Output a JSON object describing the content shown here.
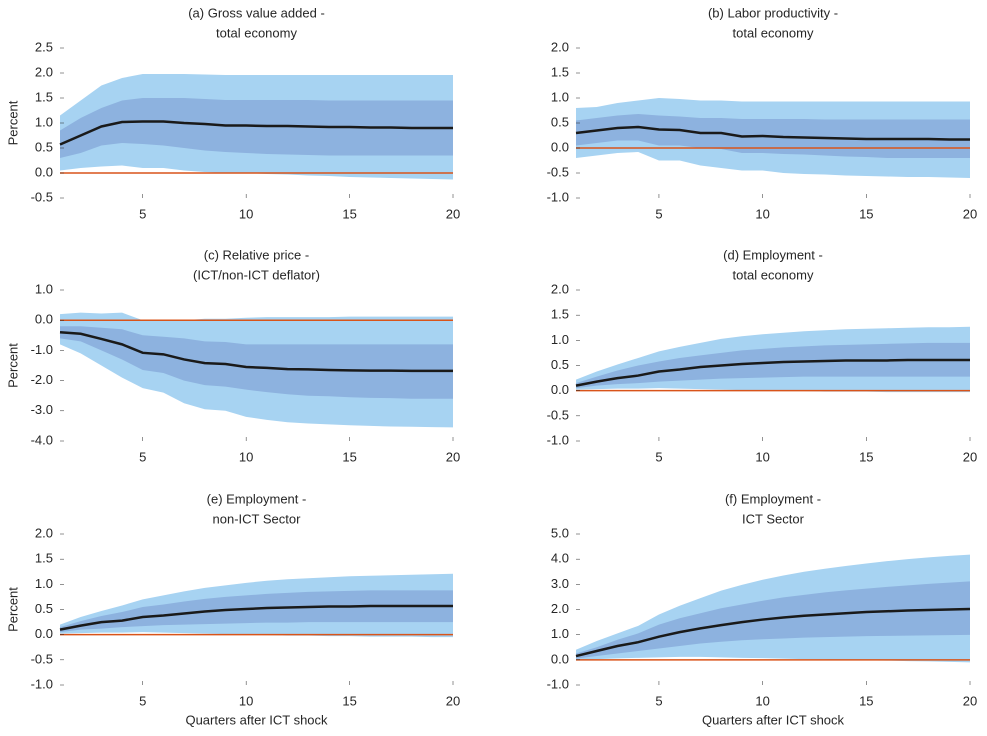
{
  "chart_data": [
    {
      "type": "line",
      "title": [
        "(a) Gross value added -",
        "total economy"
      ],
      "ylabel": "Percent",
      "x": [
        1,
        2,
        3,
        4,
        5,
        6,
        7,
        8,
        9,
        10,
        11,
        12,
        13,
        14,
        15,
        16,
        17,
        18,
        19,
        20
      ],
      "xlim": [
        1,
        20
      ],
      "xticks": [
        5,
        10,
        15,
        20
      ],
      "ylim": [
        -0.5,
        2.5
      ],
      "yticks": [
        -0.5,
        {
          "value": 0,
          "label": "0.0"
        },
        0.5,
        {
          "value": 1,
          "label": "1.0"
        },
        1.5,
        {
          "value": 2,
          "label": "2.0"
        },
        2.5
      ],
      "bands": [
        {
          "color": "#a7d3f2",
          "lower": [
            0.05,
            0.1,
            0.13,
            0.15,
            0.1,
            0.1,
            0.05,
            0.02,
            0,
            0,
            -0.02,
            -0.03,
            -0.05,
            -0.06,
            -0.08,
            -0.09,
            -0.1,
            -0.11,
            -0.12,
            -0.13
          ],
          "upper": [
            1.15,
            1.45,
            1.75,
            1.9,
            1.98,
            1.98,
            1.98,
            1.97,
            1.96,
            1.96,
            1.96,
            1.96,
            1.96,
            1.96,
            1.96,
            1.96,
            1.96,
            1.96,
            1.96,
            1.96
          ]
        },
        {
          "color": "#8db2df",
          "lower": [
            0.3,
            0.4,
            0.55,
            0.6,
            0.58,
            0.55,
            0.5,
            0.45,
            0.42,
            0.4,
            0.38,
            0.37,
            0.36,
            0.35,
            0.35,
            0.35,
            0.35,
            0.35,
            0.35,
            0.35
          ],
          "upper": [
            0.85,
            1.1,
            1.3,
            1.45,
            1.5,
            1.5,
            1.5,
            1.48,
            1.46,
            1.46,
            1.46,
            1.46,
            1.46,
            1.45,
            1.45,
            1.45,
            1.45,
            1.45,
            1.45,
            1.45
          ]
        }
      ],
      "series": [
        {
          "color": "#1a1a1a",
          "values": [
            0.57,
            0.75,
            0.93,
            1.02,
            1.03,
            1.03,
            1.0,
            0.98,
            0.95,
            0.95,
            0.94,
            0.94,
            0.93,
            0.92,
            0.92,
            0.91,
            0.91,
            0.9,
            0.9,
            0.9
          ]
        }
      ],
      "hline": {
        "value": 0,
        "color": "#d9541a"
      }
    },
    {
      "type": "line",
      "title": [
        "(b) Labor productivity -",
        "total economy"
      ],
      "x": [
        1,
        2,
        3,
        4,
        5,
        6,
        7,
        8,
        9,
        10,
        11,
        12,
        13,
        14,
        15,
        16,
        17,
        18,
        19,
        20
      ],
      "xlim": [
        1,
        20
      ],
      "xticks": [
        5,
        10,
        15,
        20
      ],
      "ylim": [
        -1,
        2
      ],
      "yticks": [
        {
          "value": -1,
          "label": "-1.0"
        },
        -0.5,
        {
          "value": 0,
          "label": "0.0"
        },
        0.5,
        {
          "value": 1,
          "label": "1.0"
        },
        1.5,
        {
          "value": 2,
          "label": "2.0"
        }
      ],
      "bands": [
        {
          "color": "#a7d3f2",
          "lower": [
            -0.2,
            -0.15,
            -0.1,
            -0.08,
            -0.25,
            -0.25,
            -0.35,
            -0.4,
            -0.45,
            -0.45,
            -0.5,
            -0.52,
            -0.53,
            -0.55,
            -0.56,
            -0.57,
            -0.58,
            -0.58,
            -0.59,
            -0.6
          ],
          "upper": [
            0.8,
            0.82,
            0.9,
            0.95,
            1.0,
            0.98,
            0.95,
            0.95,
            0.93,
            0.93,
            0.93,
            0.93,
            0.93,
            0.93,
            0.93,
            0.93,
            0.93,
            0.93,
            0.93,
            0.93
          ]
        },
        {
          "color": "#8db2df",
          "lower": [
            0.05,
            0.1,
            0.15,
            0.15,
            0.05,
            0.05,
            0,
            -0.02,
            -0.1,
            -0.1,
            -0.12,
            -0.13,
            -0.15,
            -0.17,
            -0.18,
            -0.2,
            -0.2,
            -0.2,
            -0.2,
            -0.2
          ],
          "upper": [
            0.55,
            0.6,
            0.65,
            0.68,
            0.65,
            0.63,
            0.6,
            0.6,
            0.58,
            0.58,
            0.58,
            0.58,
            0.57,
            0.57,
            0.57,
            0.57,
            0.57,
            0.57,
            0.57,
            0.57
          ]
        }
      ],
      "series": [
        {
          "color": "#1a1a1a",
          "values": [
            0.3,
            0.35,
            0.4,
            0.42,
            0.37,
            0.36,
            0.3,
            0.3,
            0.23,
            0.24,
            0.22,
            0.21,
            0.2,
            0.19,
            0.18,
            0.18,
            0.18,
            0.18,
            0.17,
            0.17
          ]
        }
      ],
      "hline": {
        "value": 0,
        "color": "#d9541a"
      }
    },
    {
      "type": "line",
      "title": [
        "(c) Relative price -",
        "(ICT/non-ICT deflator)"
      ],
      "ylabel": "Percent",
      "x": [
        1,
        2,
        3,
        4,
        5,
        6,
        7,
        8,
        9,
        10,
        11,
        12,
        13,
        14,
        15,
        16,
        17,
        18,
        19,
        20
      ],
      "xlim": [
        1,
        20
      ],
      "xticks": [
        5,
        10,
        15,
        20
      ],
      "ylim": [
        -4,
        1
      ],
      "yticks": [
        {
          "value": -4,
          "label": "-4.0"
        },
        {
          "value": -3,
          "label": "-3.0"
        },
        {
          "value": -2,
          "label": "-2.0"
        },
        {
          "value": -1,
          "label": "-1.0"
        },
        {
          "value": 0,
          "label": "0.0"
        },
        {
          "value": 1,
          "label": "1.0"
        }
      ],
      "bands": [
        {
          "color": "#a7d3f2",
          "lower": [
            -0.8,
            -1.1,
            -1.5,
            -1.9,
            -2.25,
            -2.4,
            -2.75,
            -2.95,
            -3.0,
            -3.2,
            -3.3,
            -3.38,
            -3.42,
            -3.45,
            -3.48,
            -3.5,
            -3.52,
            -3.53,
            -3.54,
            -3.55
          ],
          "upper": [
            0.2,
            0.25,
            0.22,
            0.25,
            0,
            0,
            0,
            0.05,
            0.05,
            0.08,
            0.1,
            0.1,
            0.1,
            0.1,
            0.12,
            0.12,
            0.12,
            0.12,
            0.12,
            0.12
          ]
        },
        {
          "color": "#8db2df",
          "lower": [
            -0.6,
            -0.7,
            -1.0,
            -1.3,
            -1.65,
            -1.75,
            -2.0,
            -2.15,
            -2.2,
            -2.3,
            -2.38,
            -2.45,
            -2.5,
            -2.52,
            -2.55,
            -2.57,
            -2.58,
            -2.6,
            -2.6,
            -2.6
          ],
          "upper": [
            -0.2,
            -0.2,
            -0.25,
            -0.3,
            -0.5,
            -0.55,
            -0.6,
            -0.7,
            -0.72,
            -0.8,
            -0.8,
            -0.8,
            -0.8,
            -0.8,
            -0.8,
            -0.8,
            -0.8,
            -0.8,
            -0.8,
            -0.8
          ]
        }
      ],
      "series": [
        {
          "color": "#1a1a1a",
          "values": [
            -0.4,
            -0.45,
            -0.62,
            -0.8,
            -1.08,
            -1.13,
            -1.3,
            -1.42,
            -1.45,
            -1.55,
            -1.58,
            -1.62,
            -1.63,
            -1.65,
            -1.66,
            -1.67,
            -1.67,
            -1.68,
            -1.68,
            -1.68
          ]
        }
      ],
      "hline": {
        "value": 0,
        "color": "#d9541a"
      }
    },
    {
      "type": "line",
      "title": [
        "(d) Employment -",
        "total economy"
      ],
      "x": [
        1,
        2,
        3,
        4,
        5,
        6,
        7,
        8,
        9,
        10,
        11,
        12,
        13,
        14,
        15,
        16,
        17,
        18,
        19,
        20
      ],
      "xlim": [
        1,
        20
      ],
      "xticks": [
        5,
        10,
        15,
        20
      ],
      "ylim": [
        -1,
        2
      ],
      "yticks": [
        {
          "value": -1,
          "label": "-1.0"
        },
        -0.5,
        {
          "value": 0,
          "label": "0.0"
        },
        0.5,
        {
          "value": 1,
          "label": "1.0"
        },
        1.5,
        {
          "value": 2,
          "label": "2.0"
        }
      ],
      "bands": [
        {
          "color": "#a7d3f2",
          "lower": [
            0.02,
            0.03,
            0.04,
            0.04,
            0.05,
            0.04,
            0.03,
            0.02,
            0.01,
            0,
            -0.01,
            -0.01,
            -0.02,
            -0.02,
            -0.02,
            -0.03,
            -0.03,
            -0.03,
            -0.03,
            -0.03
          ],
          "upper": [
            0.22,
            0.38,
            0.52,
            0.65,
            0.78,
            0.87,
            0.95,
            1.03,
            1.08,
            1.12,
            1.15,
            1.18,
            1.2,
            1.22,
            1.23,
            1.24,
            1.25,
            1.26,
            1.26,
            1.27
          ]
        },
        {
          "color": "#8db2df",
          "lower": [
            0.05,
            0.1,
            0.13,
            0.15,
            0.18,
            0.2,
            0.22,
            0.24,
            0.25,
            0.26,
            0.27,
            0.28,
            0.28,
            0.28,
            0.28,
            0.28,
            0.28,
            0.28,
            0.28,
            0.28
          ],
          "upper": [
            0.15,
            0.28,
            0.4,
            0.5,
            0.58,
            0.65,
            0.7,
            0.75,
            0.8,
            0.83,
            0.86,
            0.88,
            0.9,
            0.91,
            0.92,
            0.93,
            0.94,
            0.95,
            0.95,
            0.95
          ]
        }
      ],
      "series": [
        {
          "color": "#1a1a1a",
          "values": [
            0.1,
            0.18,
            0.25,
            0.3,
            0.38,
            0.42,
            0.47,
            0.5,
            0.53,
            0.55,
            0.57,
            0.58,
            0.59,
            0.6,
            0.6,
            0.6,
            0.61,
            0.61,
            0.61,
            0.61
          ]
        }
      ],
      "hline": {
        "value": 0,
        "color": "#d9541a"
      }
    },
    {
      "type": "line",
      "title": [
        "(e) Employment -",
        "non-ICT Sector"
      ],
      "ylabel": "Percent",
      "xlabel": "Quarters after ICT shock",
      "x": [
        1,
        2,
        3,
        4,
        5,
        6,
        7,
        8,
        9,
        10,
        11,
        12,
        13,
        14,
        15,
        16,
        17,
        18,
        19,
        20
      ],
      "xlim": [
        1,
        20
      ],
      "xticks": [
        5,
        10,
        15,
        20
      ],
      "ylim": [
        -1,
        2
      ],
      "yticks": [
        {
          "value": -1,
          "label": "-1.0"
        },
        -0.5,
        {
          "value": 0,
          "label": "0.0"
        },
        0.5,
        {
          "value": 1,
          "label": "1.0"
        },
        1.5,
        {
          "value": 2,
          "label": "2.0"
        }
      ],
      "bands": [
        {
          "color": "#a7d3f2",
          "lower": [
            0.02,
            0.03,
            0.04,
            0.04,
            0.05,
            0.04,
            0.03,
            0.02,
            0.01,
            0,
            -0.01,
            -0.02,
            -0.02,
            -0.03,
            -0.03,
            -0.04,
            -0.04,
            -0.04,
            -0.05,
            -0.05
          ],
          "upper": [
            0.2,
            0.35,
            0.47,
            0.58,
            0.7,
            0.78,
            0.86,
            0.93,
            0.98,
            1.03,
            1.07,
            1.1,
            1.12,
            1.14,
            1.16,
            1.17,
            1.18,
            1.19,
            1.2,
            1.21
          ]
        },
        {
          "color": "#8db2df",
          "lower": [
            0.05,
            0.1,
            0.12,
            0.15,
            0.17,
            0.19,
            0.2,
            0.21,
            0.22,
            0.23,
            0.24,
            0.24,
            0.25,
            0.25,
            0.25,
            0.25,
            0.25,
            0.25,
            0.25,
            0.25
          ],
          "upper": [
            0.15,
            0.27,
            0.37,
            0.45,
            0.55,
            0.6,
            0.66,
            0.71,
            0.75,
            0.78,
            0.81,
            0.83,
            0.85,
            0.86,
            0.87,
            0.88,
            0.88,
            0.88,
            0.88,
            0.88
          ]
        }
      ],
      "series": [
        {
          "color": "#1a1a1a",
          "values": [
            0.1,
            0.18,
            0.25,
            0.28,
            0.35,
            0.38,
            0.42,
            0.46,
            0.49,
            0.51,
            0.53,
            0.54,
            0.55,
            0.56,
            0.56,
            0.57,
            0.57,
            0.57,
            0.57,
            0.57
          ]
        }
      ],
      "hline": {
        "value": 0,
        "color": "#d9541a"
      }
    },
    {
      "type": "line",
      "title": [
        "(f) Employment -",
        "ICT Sector"
      ],
      "xlabel": "Quarters after ICT shock",
      "x": [
        1,
        2,
        3,
        4,
        5,
        6,
        7,
        8,
        9,
        10,
        11,
        12,
        13,
        14,
        15,
        16,
        17,
        18,
        19,
        20
      ],
      "xlim": [
        1,
        20
      ],
      "xticks": [
        5,
        10,
        15,
        20
      ],
      "ylim": [
        -1,
        5
      ],
      "yticks": [
        {
          "value": -1,
          "label": "-1.0"
        },
        {
          "value": 0,
          "label": "0.0"
        },
        {
          "value": 1,
          "label": "1.0"
        },
        {
          "value": 2,
          "label": "2.0"
        },
        {
          "value": 3,
          "label": "3.0"
        },
        {
          "value": 4,
          "label": "4.0"
        },
        {
          "value": 5,
          "label": "5.0"
        }
      ],
      "bands": [
        {
          "color": "#a7d3f2",
          "lower": [
            0,
            0.03,
            0.06,
            0.08,
            0.1,
            0.12,
            0.12,
            0.1,
            0.08,
            0.07,
            0.05,
            0.03,
            0.02,
            0,
            -0.02,
            -0.03,
            -0.05,
            -0.06,
            -0.08,
            -0.1
          ],
          "upper": [
            0.4,
            0.75,
            1.05,
            1.35,
            1.8,
            2.15,
            2.45,
            2.75,
            2.98,
            3.18,
            3.35,
            3.5,
            3.62,
            3.73,
            3.83,
            3.92,
            4.0,
            4.07,
            4.13,
            4.18
          ]
        },
        {
          "color": "#8db2df",
          "lower": [
            0.05,
            0.15,
            0.25,
            0.35,
            0.45,
            0.55,
            0.65,
            0.72,
            0.78,
            0.82,
            0.85,
            0.88,
            0.9,
            0.92,
            0.94,
            0.95,
            0.96,
            0.97,
            0.98,
            0.99
          ],
          "upper": [
            0.25,
            0.5,
            0.8,
            1.05,
            1.4,
            1.65,
            1.85,
            2.05,
            2.2,
            2.35,
            2.48,
            2.58,
            2.68,
            2.76,
            2.83,
            2.9,
            2.96,
            3.02,
            3.07,
            3.12
          ]
        }
      ],
      "series": [
        {
          "color": "#1a1a1a",
          "values": [
            0.15,
            0.35,
            0.55,
            0.7,
            0.92,
            1.1,
            1.25,
            1.38,
            1.5,
            1.6,
            1.68,
            1.75,
            1.8,
            1.85,
            1.9,
            1.93,
            1.96,
            1.98,
            2.0,
            2.02
          ]
        }
      ],
      "hline": {
        "value": 0,
        "color": "#d9541a"
      }
    }
  ]
}
